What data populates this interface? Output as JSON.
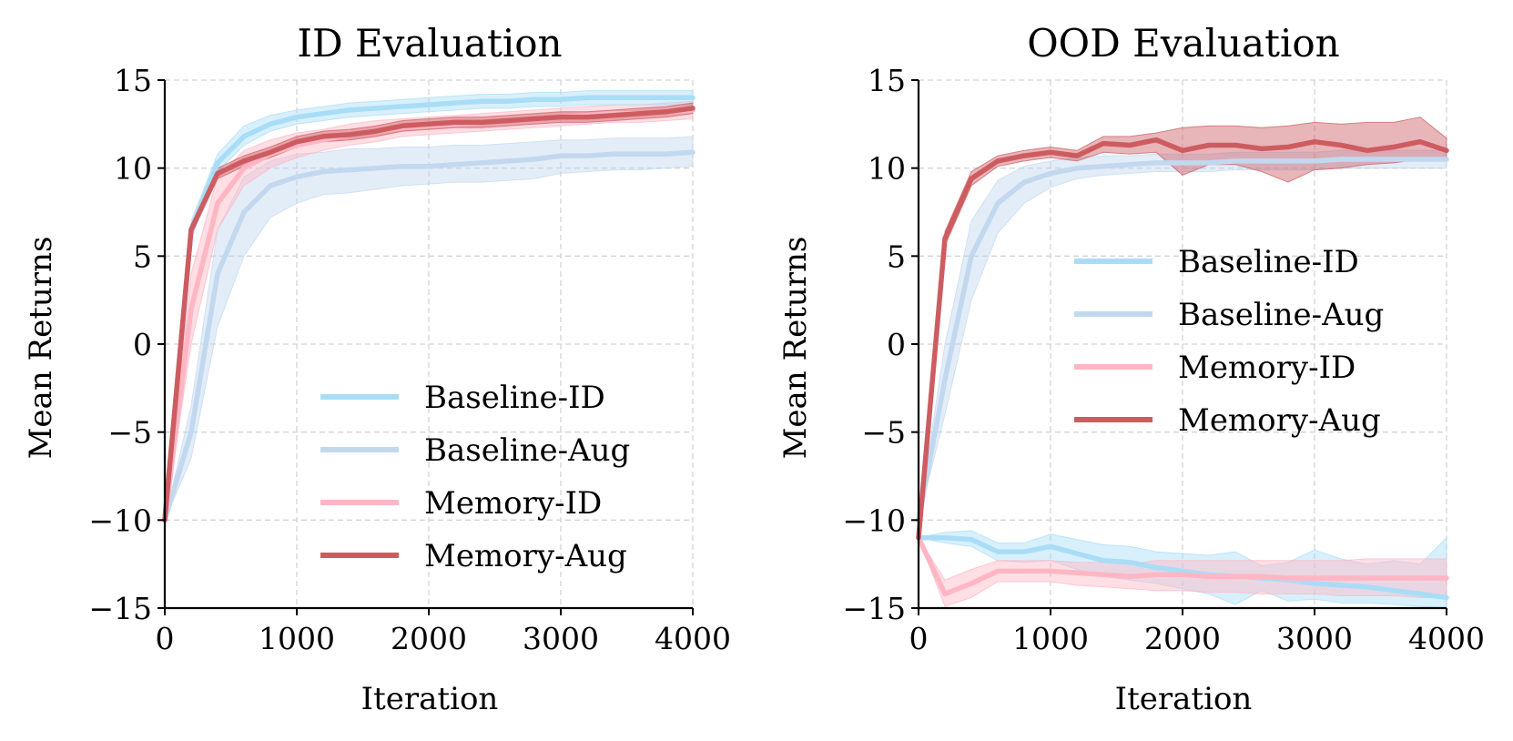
{
  "chart_data": [
    {
      "type": "line",
      "title": "ID Evaluation",
      "xlabel": "Iteration",
      "ylabel": "Mean Returns",
      "xlim": [
        0,
        4000
      ],
      "ylim": [
        -15,
        15
      ],
      "xticks": [
        0,
        1000,
        2000,
        3000,
        4000
      ],
      "yticks": [
        15,
        10,
        5,
        0,
        -5,
        -10,
        -15
      ],
      "ytick_labels": [
        "15",
        "10",
        "5",
        "0",
        "−5",
        "−10",
        "−15"
      ],
      "xtick_labels": [
        "0",
        "1000",
        "2000",
        "3000",
        "4000"
      ],
      "grid": true,
      "legend_position": "lower-right",
      "x": [
        0,
        200,
        400,
        600,
        800,
        1000,
        1200,
        1400,
        1600,
        1800,
        2000,
        2200,
        2400,
        2600,
        2800,
        3000,
        3200,
        3400,
        3600,
        3800,
        4000
      ],
      "series": [
        {
          "name": "Baseline-Aug",
          "color": "#c2d8ef",
          "values": [
            -10,
            -5,
            4,
            7.5,
            9,
            9.5,
            9.8,
            9.9,
            10,
            10.1,
            10.1,
            10.2,
            10.3,
            10.4,
            10.5,
            10.7,
            10.7,
            10.8,
            10.8,
            10.8,
            10.9
          ],
          "lower": [
            -10,
            -6.5,
            1,
            5,
            7.2,
            8,
            8.5,
            8.6,
            8.8,
            9,
            9.1,
            9.2,
            9.2,
            9.3,
            9.4,
            9.7,
            9.8,
            9.9,
            9.9,
            10,
            10.1
          ],
          "upper": [
            -10,
            -3.5,
            6.5,
            9.5,
            10.4,
            10.8,
            10.9,
            11.1,
            11.1,
            11.2,
            11.2,
            11.3,
            11.3,
            11.4,
            11.5,
            11.6,
            11.6,
            11.7,
            11.7,
            11.7,
            11.8
          ]
        },
        {
          "name": "Memory-ID",
          "color": "#ffb6c4",
          "values": [
            -10,
            2,
            8,
            10,
            10.8,
            11.3,
            11.6,
            11.9,
            12.1,
            12.3,
            12.4,
            12.5,
            12.6,
            12.7,
            12.8,
            12.9,
            13,
            13.1,
            13.1,
            13.2,
            13.3
          ],
          "lower": [
            -10,
            0,
            6.5,
            9,
            10,
            10.6,
            11,
            11.3,
            11.5,
            11.8,
            11.9,
            12,
            12.1,
            12.2,
            12.3,
            12.4,
            12.5,
            12.6,
            12.6,
            12.7,
            12.8
          ],
          "upper": [
            -10,
            4,
            9.5,
            11,
            11.6,
            12,
            12.2,
            12.5,
            12.7,
            12.8,
            12.9,
            13,
            13.1,
            13.2,
            13.3,
            13.4,
            13.5,
            13.6,
            13.6,
            13.7,
            13.8
          ]
        },
        {
          "name": "Baseline-ID",
          "color": "#a9ddf7",
          "values": [
            -10,
            6.5,
            10.3,
            11.8,
            12.5,
            12.9,
            13.1,
            13.3,
            13.4,
            13.5,
            13.6,
            13.7,
            13.8,
            13.8,
            13.9,
            13.9,
            14,
            14,
            14,
            14,
            14
          ],
          "lower": [
            -10,
            6,
            9.8,
            11.3,
            12.1,
            12.5,
            12.7,
            12.9,
            13,
            13.1,
            13.2,
            13.3,
            13.4,
            13.4,
            13.5,
            13.5,
            13.6,
            13.6,
            13.6,
            13.6,
            13.6
          ],
          "upper": [
            -10,
            7,
            10.8,
            12.4,
            13,
            13.3,
            13.5,
            13.7,
            13.8,
            13.9,
            14,
            14.1,
            14.2,
            14.2,
            14.3,
            14.3,
            14.4,
            14.4,
            14.4,
            14.4,
            14.4
          ]
        },
        {
          "name": "Memory-Aug",
          "color": "#cd5c61",
          "values": [
            -10,
            6.5,
            9.7,
            10.4,
            10.9,
            11.5,
            11.8,
            11.9,
            12.1,
            12.4,
            12.5,
            12.6,
            12.6,
            12.7,
            12.8,
            12.9,
            12.9,
            13,
            13.1,
            13.2,
            13.4
          ],
          "lower": [
            -10,
            6.2,
            9.4,
            10.1,
            10.6,
            11.2,
            11.5,
            11.6,
            11.8,
            12.1,
            12.2,
            12.3,
            12.3,
            12.4,
            12.5,
            12.6,
            12.6,
            12.7,
            12.8,
            12.9,
            13.1
          ],
          "upper": [
            -10,
            6.8,
            10,
            10.7,
            11.2,
            11.8,
            12.1,
            12.2,
            12.4,
            12.7,
            12.8,
            12.9,
            12.9,
            13,
            13.1,
            13.2,
            13.2,
            13.3,
            13.4,
            13.5,
            13.7
          ]
        }
      ],
      "legend": [
        "Baseline-ID",
        "Baseline-Aug",
        "Memory-ID",
        "Memory-Aug"
      ]
    },
    {
      "type": "line",
      "title": "OOD Evaluation",
      "xlabel": "Iteration",
      "ylabel": "Mean Returns",
      "xlim": [
        0,
        4000
      ],
      "ylim": [
        -15,
        15
      ],
      "xticks": [
        0,
        1000,
        2000,
        3000,
        4000
      ],
      "yticks": [
        15,
        10,
        5,
        0,
        -5,
        -10,
        -15
      ],
      "ytick_labels": [
        "15",
        "10",
        "5",
        "0",
        "−5",
        "−10",
        "−15"
      ],
      "xtick_labels": [
        "0",
        "1000",
        "2000",
        "3000",
        "4000"
      ],
      "grid": true,
      "legend_position": "center-right",
      "x": [
        0,
        200,
        400,
        600,
        800,
        1000,
        1200,
        1400,
        1600,
        1800,
        2000,
        2200,
        2400,
        2600,
        2800,
        3000,
        3200,
        3400,
        3600,
        3800,
        4000
      ],
      "series": [
        {
          "name": "Baseline-Aug",
          "color": "#c2d8ef",
          "values": [
            -10,
            -2,
            5,
            8,
            9.2,
            9.7,
            10,
            10.1,
            10.2,
            10.3,
            10.3,
            10.3,
            10.4,
            10.4,
            10.4,
            10.4,
            10.5,
            10.5,
            10.5,
            10.5,
            10.5
          ],
          "lower": [
            -10,
            -4,
            2.5,
            6.3,
            8,
            8.9,
            9.4,
            9.6,
            9.7,
            9.8,
            9.8,
            9.8,
            9.9,
            9.9,
            9.9,
            9.9,
            10,
            10,
            10,
            10,
            10
          ],
          "upper": [
            -10,
            0,
            7,
            9.3,
            10.1,
            10.4,
            10.6,
            10.7,
            10.7,
            10.8,
            10.8,
            10.8,
            10.9,
            10.9,
            10.9,
            10.9,
            11,
            11,
            11,
            11,
            11
          ]
        },
        {
          "name": "Baseline-ID",
          "color": "#a9ddf7",
          "values": [
            -11,
            -11,
            -11.1,
            -11.8,
            -11.8,
            -11.5,
            -11.9,
            -12.3,
            -12.4,
            -12.7,
            -12.9,
            -13.1,
            -13.2,
            -13.3,
            -13.4,
            -13.6,
            -13.7,
            -13.8,
            -14,
            -14.2,
            -14.4
          ],
          "lower": [
            -11,
            -11.3,
            -11.5,
            -12.3,
            -12.4,
            -12.3,
            -12.8,
            -13.2,
            -13.4,
            -13.6,
            -13.9,
            -14.2,
            -14.8,
            -14,
            -14.6,
            -14.5,
            -14.7,
            -14.7,
            -14.8,
            -14.9,
            -15
          ],
          "upper": [
            -11,
            -10.7,
            -10.6,
            -11.3,
            -11.3,
            -10.8,
            -11.1,
            -11.4,
            -11.5,
            -11.8,
            -11.9,
            -12,
            -11.8,
            -12.6,
            -12.4,
            -11.7,
            -12.2,
            -12.5,
            -12.3,
            -12.5,
            -11
          ]
        },
        {
          "name": "Memory-ID",
          "color": "#ffb6c4",
          "values": [
            -11,
            -14.2,
            -13.6,
            -12.9,
            -12.9,
            -12.9,
            -13,
            -13.1,
            -13.2,
            -13.1,
            -13.1,
            -13.2,
            -13.2,
            -13.2,
            -13.3,
            -13.3,
            -13.3,
            -13.3,
            -13.3,
            -13.3,
            -13.3
          ],
          "lower": [
            -11,
            -14.9,
            -14.4,
            -13.5,
            -13.5,
            -13.5,
            -13.7,
            -13.8,
            -13.9,
            -14,
            -14,
            -14.1,
            -14.1,
            -14.2,
            -14.2,
            -14.2,
            -14.3,
            -14.3,
            -14.3,
            -14.4,
            -14.4
          ],
          "upper": [
            -11,
            -13.4,
            -12.8,
            -12.3,
            -12.3,
            -12.3,
            -12.4,
            -12.4,
            -12.5,
            -12.3,
            -12.3,
            -12.3,
            -12.3,
            -12.3,
            -12.3,
            -12.3,
            -12.3,
            -12.2,
            -12.2,
            -12.2,
            -12.2
          ]
        },
        {
          "name": "Memory-Aug",
          "color": "#cd5c61",
          "values": [
            -11,
            6,
            9.4,
            10.4,
            10.7,
            10.9,
            10.7,
            11.4,
            11.3,
            11.6,
            11,
            11.3,
            11.3,
            11.1,
            11.2,
            11.5,
            11.3,
            11,
            11.2,
            11.5,
            11
          ],
          "lower": [
            -11,
            5.6,
            9,
            10.1,
            10.4,
            10.6,
            10.4,
            10.9,
            10.8,
            10.9,
            9.6,
            10.2,
            10.2,
            9.8,
            9.2,
            9.9,
            10,
            10.2,
            10.3,
            10.5,
            10.4
          ],
          "upper": [
            -11,
            6.4,
            9.8,
            10.7,
            11,
            11.2,
            11,
            11.8,
            11.8,
            12,
            12.3,
            12.4,
            12.4,
            12.3,
            12.4,
            12.6,
            12.5,
            12.6,
            12.6,
            12.9,
            11.7
          ]
        }
      ],
      "legend": [
        "Baseline-ID",
        "Baseline-Aug",
        "Memory-ID",
        "Memory-Aug"
      ]
    }
  ]
}
